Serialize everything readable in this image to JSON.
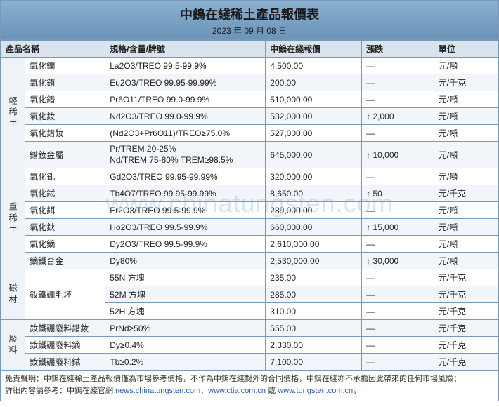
{
  "title": "中鎢在綫稀土產品報價表",
  "date": "2023 年 09 月 08 日",
  "columns": [
    "產品名稱",
    "規格/含量/牌號",
    "中鎢在綫報價",
    "漲跌",
    "單位"
  ],
  "watermark": "www.chinatungsten.com",
  "categories": [
    {
      "name": "輕稀土",
      "rows": [
        {
          "name": "氧化鑭",
          "spec": "La2O3/TREO 99.5-99.9%",
          "price": "4,500.00",
          "change": "—",
          "unit": "元/噸"
        },
        {
          "name": "氧化銪",
          "spec": "Eu2O3/TREO 99.95-99.99%",
          "price": "200.00",
          "change": "—",
          "unit": "元/千克"
        },
        {
          "name": "氧化鐠",
          "spec": "Pr6O11/TREO 99.0-99.9%",
          "price": "510,000.00",
          "change": "—",
          "unit": "元/噸"
        },
        {
          "name": "氧化釹",
          "spec": "Nd2O3/TREO 99.0-99.9%",
          "price": "532,000.00",
          "change": "↑ 2,000",
          "unit": "元/噸"
        },
        {
          "name": "氧化鐠釹",
          "spec": "(Nd2O3+Pr6O11)/TREO≥75.0%",
          "price": "527,000.00",
          "change": "—",
          "unit": "元/噸"
        },
        {
          "name": "鐠釹金屬",
          "spec": "Pr/TREM 20-25%\nNd/TREM 75-80% TREM≥98.5%",
          "price": "645,000.00",
          "change": "↑ 10,000",
          "unit": "元/噸",
          "multi": true
        }
      ]
    },
    {
      "name": "重稀土",
      "rows": [
        {
          "name": "氧化釓",
          "spec": "Gd2O3/TREO 99.95-99.99%",
          "price": "320,000.00",
          "change": "—",
          "unit": "元/噸"
        },
        {
          "name": "氧化鋱",
          "spec": "Tb4O7/TREO 99.95-99.99%",
          "price": "8,650.00",
          "change": "↑ 50",
          "unit": "元/千克"
        },
        {
          "name": "氧化鉺",
          "spec": "Er2O3/TREO 99.5-99.9%",
          "price": "289,000.00",
          "change": "—",
          "unit": "元/噸"
        },
        {
          "name": "氧化鈥",
          "spec": "Ho2O3/TREO 99.5-99.9%",
          "price": "660,000.00",
          "change": "↑ 15,000",
          "unit": "元/噸"
        },
        {
          "name": "氧化鏑",
          "spec": "Dy2O3/TREO 99.5-99.9%",
          "price": "2,610,000.00",
          "change": "—",
          "unit": "元/噸"
        },
        {
          "name": "鏑鐵合金",
          "spec": "Dy80%",
          "price": "2,530,000.00",
          "change": "↑ 30,000",
          "unit": "元/噸"
        }
      ]
    },
    {
      "name": "磁材",
      "rows": [
        {
          "name": "釹鐵硼毛坯",
          "spec": "55N 方塊",
          "price": "235.00",
          "change": "—",
          "unit": "元/千克",
          "rowspan": 3
        },
        {
          "spec": "52M 方塊",
          "price": "285.00",
          "change": "—",
          "unit": "元/千克"
        },
        {
          "spec": "52H 方塊",
          "price": "310.00",
          "change": "—",
          "unit": "元/千克"
        }
      ]
    },
    {
      "name": "廢料",
      "rows": [
        {
          "name": "釹鐵硼廢料鐠釹",
          "spec": "PrNd≥50%",
          "price": "555.00",
          "change": "—",
          "unit": "元/千克"
        },
        {
          "name": "釹鐵硼廢料鏑",
          "spec": "Dy≥0.4%",
          "price": "2,330.00",
          "change": "—",
          "unit": "元/千克"
        },
        {
          "name": "釹鐵硼廢料鋱",
          "spec": "Tb≥0.2%",
          "price": "7,100.00",
          "change": "—",
          "unit": "元/千克"
        }
      ]
    }
  ],
  "footer": {
    "line1_prefix": "免責聲明：",
    "line1": "中鎢在綫稀土產品報價僅為市場參考價格，不作為中鎢在綫對外的合同價格，中鎢在綫亦不承擔因此帶來的任何市場風險；",
    "line2_prefix": "詳細內容請參考：",
    "line2_text1": "中鎢在綫官網 ",
    "link1": "news.chinatungsten.com",
    "sep1": "，",
    "link2": "www.ctia.com.cn",
    "sep2": " 或 ",
    "link3": "www.tungsten.com.cn",
    "tail": "。"
  }
}
